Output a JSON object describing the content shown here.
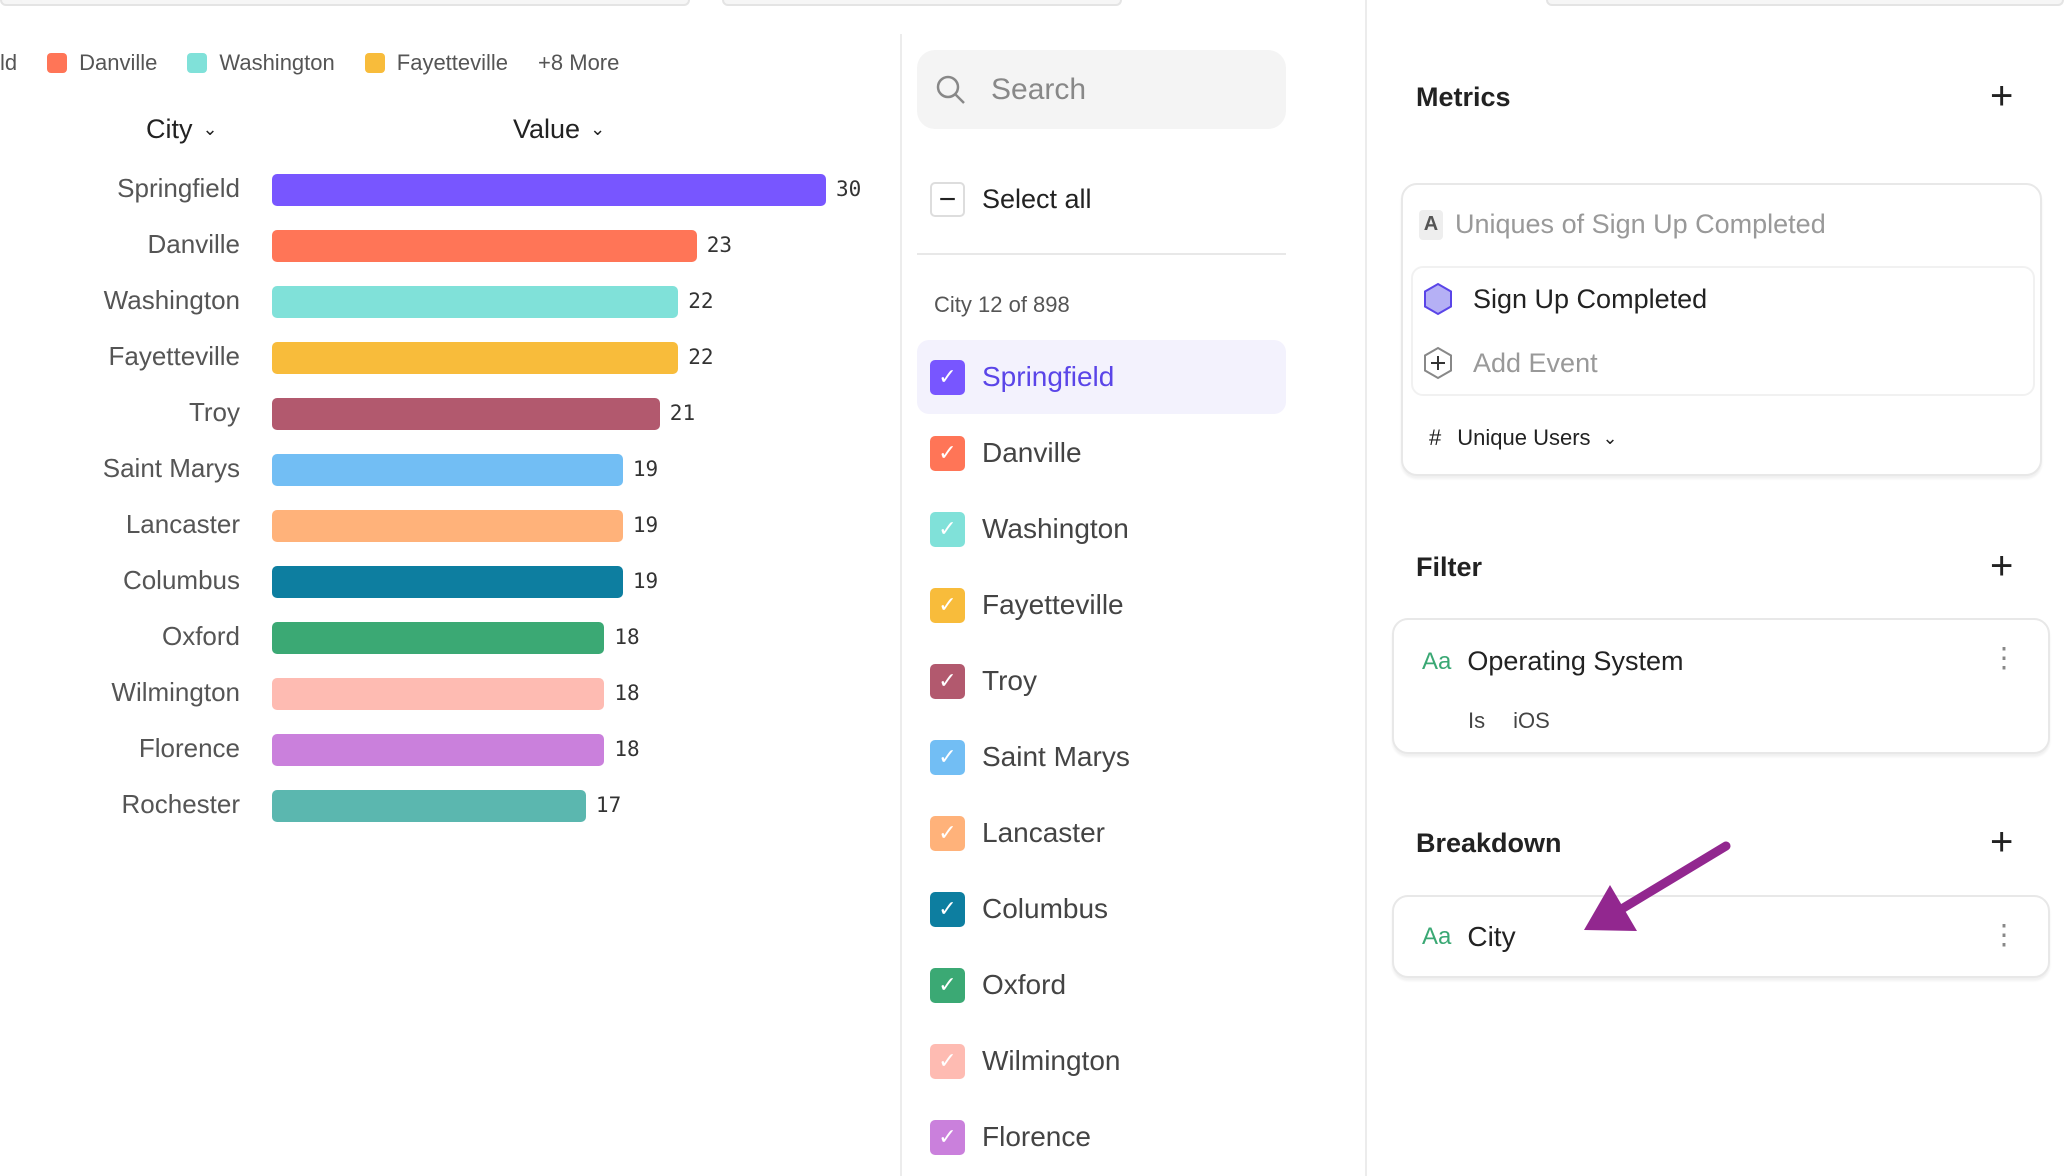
{
  "legend": {
    "items": [
      {
        "label": "ld",
        "color": ""
      },
      {
        "label": "Danville",
        "color": "#FF7557"
      },
      {
        "label": "Washington",
        "color": "#80E1D9"
      },
      {
        "label": "Fayetteville",
        "color": "#F8BC3B"
      }
    ],
    "more": "+8 More"
  },
  "table": {
    "col_city": "City",
    "col_value": "Value"
  },
  "chart_data": {
    "type": "bar",
    "orientation": "horizontal",
    "categories": [
      "Springfield",
      "Danville",
      "Washington",
      "Fayetteville",
      "Troy",
      "Saint Marys",
      "Lancaster",
      "Columbus",
      "Oxford",
      "Wilmington",
      "Florence",
      "Rochester"
    ],
    "values": [
      30,
      23,
      22,
      22,
      21,
      19,
      19,
      19,
      18,
      18,
      18,
      17
    ],
    "colors": [
      "#7856FF",
      "#FF7557",
      "#80E1D9",
      "#F8BC3B",
      "#B2596E",
      "#72BEF4",
      "#FFB27A",
      "#0D7EA0",
      "#3BA974",
      "#FEBBB2",
      "#CA80DC",
      "#5BB7AF"
    ],
    "xlim": [
      0,
      30
    ]
  },
  "selector": {
    "search_placeholder": "Search",
    "select_all": "Select all",
    "count_label": "City 12 of 898",
    "items": [
      {
        "label": "Springfield",
        "color": "#7856FF",
        "checked": true,
        "active": true
      },
      {
        "label": "Danville",
        "color": "#FF7557",
        "checked": true
      },
      {
        "label": "Washington",
        "color": "#80E1D9",
        "checked": true
      },
      {
        "label": "Fayetteville",
        "color": "#F8BC3B",
        "checked": true
      },
      {
        "label": "Troy",
        "color": "#B2596E",
        "checked": true
      },
      {
        "label": "Saint Marys",
        "color": "#72BEF4",
        "checked": true
      },
      {
        "label": "Lancaster",
        "color": "#FFB27A",
        "checked": true
      },
      {
        "label": "Columbus",
        "color": "#0D7EA0",
        "checked": true
      },
      {
        "label": "Oxford",
        "color": "#3BA974",
        "checked": true
      },
      {
        "label": "Wilmington",
        "color": "#FEBBB2",
        "checked": true
      },
      {
        "label": "Florence",
        "color": "#CA80DC",
        "checked": true
      }
    ]
  },
  "metrics": {
    "title": "Metrics",
    "badge": "A",
    "metric_name": "Uniques of Sign Up Completed",
    "event": "Sign Up Completed",
    "add_event": "Add Event",
    "measure_icon": "#",
    "measure": "Unique Users"
  },
  "filter": {
    "title": "Filter",
    "type_icon": "Aa",
    "property": "Operating System",
    "operator": "Is",
    "value": "iOS"
  },
  "breakdown": {
    "title": "Breakdown",
    "type_icon": "Aa",
    "property": "City"
  },
  "annotation": {
    "arrow_color": "#92278F"
  }
}
